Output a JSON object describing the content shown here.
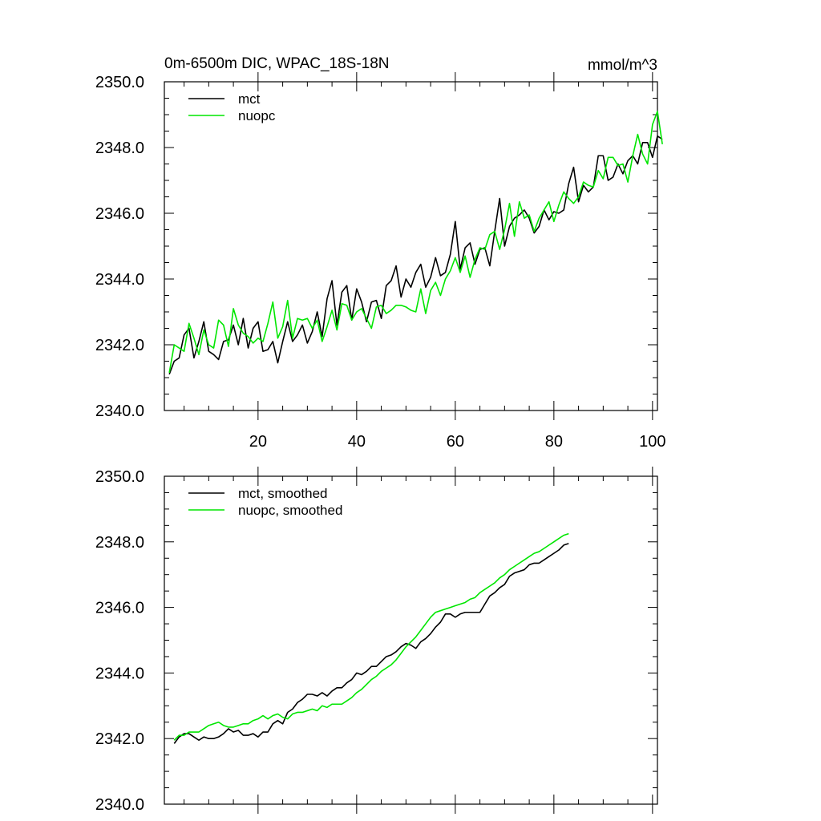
{
  "figure": {
    "title_left": "0m-6500m DIC, WPAC_18S-18N",
    "title_right": "mmol/m^3"
  },
  "colors": {
    "mct": "#000000",
    "nuopc": "#00e600"
  },
  "chart_data": [
    {
      "type": "line",
      "xlim": [
        1,
        101
      ],
      "ylim": [
        2340.0,
        2350.0
      ],
      "x_ticks": [
        20,
        40,
        60,
        80,
        100
      ],
      "y_ticks": [
        2340.0,
        2342.0,
        2344.0,
        2346.0,
        2348.0,
        2350.0
      ],
      "x_start": 2,
      "legend": "top-left",
      "series": [
        {
          "name": "mct",
          "color": "#000000",
          "values": [
            2341.1,
            2341.5,
            2341.6,
            2342.3,
            2342.5,
            2341.6,
            2342.1,
            2342.7,
            2341.8,
            2341.7,
            2341.55,
            2342.1,
            2342.15,
            2342.6,
            2342.0,
            2342.8,
            2341.9,
            2342.5,
            2342.7,
            2341.8,
            2341.85,
            2342.1,
            2341.45,
            2342.1,
            2342.7,
            2342.1,
            2342.3,
            2342.6,
            2342.05,
            2342.4,
            2343.0,
            2342.25,
            2343.4,
            2343.95,
            2342.6,
            2343.6,
            2343.8,
            2342.75,
            2343.7,
            2343.3,
            2342.7,
            2343.3,
            2343.35,
            2342.8,
            2343.8,
            2343.95,
            2344.4,
            2343.45,
            2344.0,
            2343.75,
            2344.2,
            2344.45,
            2343.75,
            2344.05,
            2344.65,
            2344.1,
            2344.2,
            2344.75,
            2345.75,
            2344.3,
            2344.95,
            2345.1,
            2344.45,
            2344.9,
            2344.95,
            2344.4,
            2345.45,
            2346.45,
            2345.0,
            2345.6,
            2345.85,
            2345.95,
            2346.1,
            2345.85,
            2345.4,
            2345.6,
            2346.1,
            2345.8,
            2346.05,
            2346.0,
            2346.1,
            2346.9,
            2347.4,
            2346.35,
            2346.85,
            2346.65,
            2346.8,
            2347.75,
            2347.75,
            2347.0,
            2347.1,
            2347.5,
            2347.2,
            2347.6,
            2347.75,
            2347.5,
            2348.15,
            2348.15,
            2347.7,
            2348.35,
            2348.25
          ]
        },
        {
          "name": "nuopc",
          "color": "#00e600",
          "values": [
            2341.15,
            2342.0,
            2341.9,
            2341.8,
            2342.65,
            2342.2,
            2341.7,
            2342.45,
            2342.0,
            2341.9,
            2342.75,
            2342.6,
            2341.95,
            2343.1,
            2342.6,
            2342.35,
            2342.25,
            2342.05,
            2342.2,
            2342.1,
            2342.65,
            2343.3,
            2342.2,
            2342.55,
            2343.35,
            2342.2,
            2342.8,
            2342.75,
            2342.8,
            2342.5,
            2342.75,
            2342.1,
            2342.55,
            2343.05,
            2342.45,
            2343.25,
            2343.2,
            2342.75,
            2343.0,
            2343.1,
            2342.8,
            2342.5,
            2343.15,
            2343.2,
            2342.95,
            2343.05,
            2343.2,
            2343.2,
            2343.15,
            2343.05,
            2343.0,
            2343.7,
            2342.95,
            2343.65,
            2343.9,
            2343.5,
            2344.0,
            2344.25,
            2344.65,
            2344.2,
            2344.7,
            2344.05,
            2344.6,
            2344.95,
            2344.9,
            2345.35,
            2345.45,
            2344.9,
            2345.5,
            2346.3,
            2345.3,
            2346.35,
            2345.85,
            2345.95,
            2345.45,
            2345.85,
            2346.1,
            2346.35,
            2345.75,
            2346.25,
            2346.65,
            2346.45,
            2346.3,
            2346.5,
            2346.95,
            2346.85,
            2346.8,
            2347.3,
            2347.05,
            2347.7,
            2347.7,
            2347.45,
            2347.5,
            2346.95,
            2347.75,
            2348.4,
            2347.8,
            2347.5,
            2348.7,
            2349.1,
            2348.1
          ]
        }
      ]
    },
    {
      "type": "line",
      "xlim": [
        1,
        101
      ],
      "ylim": [
        2340.0,
        2350.0
      ],
      "x_ticks": [
        20,
        40,
        60,
        80,
        100
      ],
      "y_ticks": [
        2340.0,
        2342.0,
        2344.0,
        2346.0,
        2348.0,
        2350.0
      ],
      "x_start": 3,
      "legend": "top-left",
      "series": [
        {
          "name": "mct, smoothed",
          "color": "#000000",
          "values": [
            2341.85,
            2342.05,
            2342.15,
            2342.15,
            2342.05,
            2341.95,
            2342.05,
            2342.0,
            2342.0,
            2342.05,
            2342.15,
            2342.3,
            2342.2,
            2342.25,
            2342.1,
            2342.1,
            2342.15,
            2342.05,
            2342.2,
            2342.2,
            2342.45,
            2342.55,
            2342.45,
            2342.8,
            2342.9,
            2343.1,
            2343.2,
            2343.35,
            2343.35,
            2343.3,
            2343.4,
            2343.3,
            2343.45,
            2343.55,
            2343.55,
            2343.7,
            2343.8,
            2344.0,
            2343.95,
            2344.05,
            2344.2,
            2344.2,
            2344.35,
            2344.5,
            2344.55,
            2344.65,
            2344.8,
            2344.9,
            2344.85,
            2344.75,
            2344.95,
            2345.05,
            2345.2,
            2345.4,
            2345.55,
            2345.8,
            2345.8,
            2345.7,
            2345.8,
            2345.85,
            2345.85,
            2345.85,
            2345.85,
            2346.1,
            2346.35,
            2346.45,
            2346.6,
            2346.7,
            2346.95,
            2347.05,
            2347.1,
            2347.15,
            2347.3,
            2347.35,
            2347.35,
            2347.45,
            2347.55,
            2347.65,
            2347.75,
            2347.9,
            2347.95
          ]
        },
        {
          "name": "nuopc, smoothed",
          "color": "#00e600",
          "values": [
            2341.95,
            2342.1,
            2342.1,
            2342.2,
            2342.2,
            2342.2,
            2342.3,
            2342.4,
            2342.45,
            2342.5,
            2342.4,
            2342.35,
            2342.35,
            2342.4,
            2342.45,
            2342.45,
            2342.55,
            2342.6,
            2342.7,
            2342.6,
            2342.7,
            2342.75,
            2342.65,
            2342.6,
            2342.75,
            2342.8,
            2342.8,
            2342.85,
            2342.9,
            2342.85,
            2343.0,
            2342.95,
            2343.05,
            2343.05,
            2343.05,
            2343.15,
            2343.25,
            2343.4,
            2343.5,
            2343.65,
            2343.8,
            2343.9,
            2344.05,
            2344.15,
            2344.25,
            2344.4,
            2344.6,
            2344.8,
            2344.95,
            2345.1,
            2345.3,
            2345.5,
            2345.7,
            2345.85,
            2345.9,
            2345.95,
            2346.0,
            2346.05,
            2346.1,
            2346.15,
            2346.25,
            2346.3,
            2346.45,
            2346.55,
            2346.65,
            2346.75,
            2346.9,
            2347.0,
            2347.15,
            2347.25,
            2347.35,
            2347.45,
            2347.55,
            2347.65,
            2347.7,
            2347.8,
            2347.9,
            2348.0,
            2348.1,
            2348.2,
            2348.25
          ]
        }
      ]
    }
  ]
}
